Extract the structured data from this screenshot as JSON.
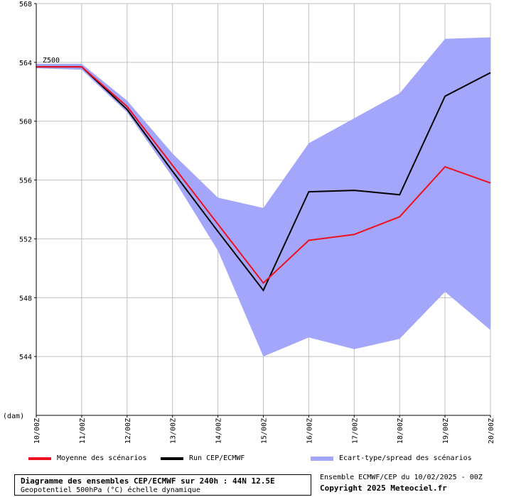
{
  "chart_data": {
    "type": "line",
    "x": [
      "10/00Z",
      "11/00Z",
      "12/00Z",
      "13/00Z",
      "14/00Z",
      "15/00Z",
      "16/00Z",
      "17/00Z",
      "18/00Z",
      "19/00Z",
      "20/00Z"
    ],
    "ylim": [
      540,
      568
    ],
    "yticks": [
      544,
      548,
      552,
      556,
      560,
      564,
      568
    ],
    "y_unit": "(dam)",
    "grid": true,
    "series_label": "Z500",
    "series": [
      {
        "name": "Moyenne des scénarios",
        "kind": "line",
        "color": "#ee1122",
        "values": [
          563.7,
          563.7,
          561.0,
          557.0,
          553.0,
          549.0,
          551.9,
          552.3,
          553.5,
          556.9,
          555.8
        ]
      },
      {
        "name": "Run CEP/ECMWF",
        "kind": "line",
        "color": "#000000",
        "values": [
          563.7,
          563.7,
          560.8,
          556.6,
          552.5,
          548.5,
          555.2,
          555.3,
          555.0,
          561.7,
          563.3
        ]
      },
      {
        "name": "Ecart-type/spread des scénarios",
        "kind": "band",
        "color": "#a3a6fa",
        "upper": [
          563.9,
          563.9,
          561.4,
          557.8,
          554.8,
          554.1,
          558.5,
          560.2,
          561.9,
          565.6,
          565.7
        ],
        "lower": [
          563.6,
          563.5,
          560.6,
          556.2,
          551.2,
          544.0,
          545.3,
          544.5,
          545.2,
          548.4,
          545.8
        ]
      }
    ]
  },
  "footer": {
    "title": "Diagramme des ensembles CEP/ECMWF sur 240h : 44N 12.5E",
    "subtitle": "Geopotentiel 500hPa (°C) échelle dynamique",
    "run_info": "Ensemble ECMWF/CEP du 10/02/2025 - 00Z",
    "copyright": "Copyright 2025 Meteociel.fr"
  }
}
